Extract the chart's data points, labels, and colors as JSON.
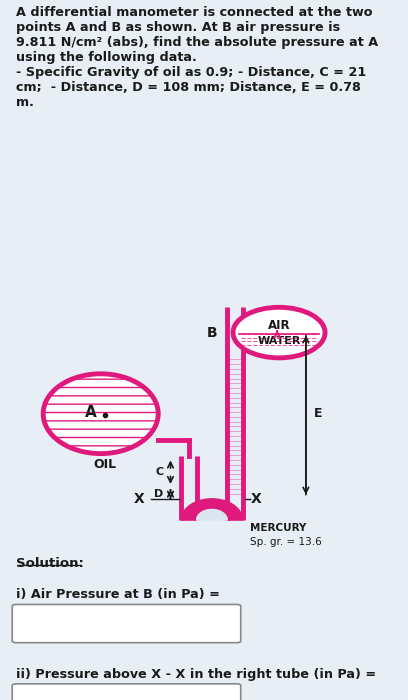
{
  "bg_color": "#e8eef5",
  "diagram_bg": "#dce6f0",
  "pink": "#e0197d",
  "title_text": "A differential manometer is connected at the two\npoints A and B as shown. At B air pressure is\n9.811 N/cm² (abs), find the absolute pressure at A\nusing the following data.\n- Specific Gravity of oil as 0.9; - Distance, C = 21\ncm;  - Distance, D = 108 mm; Distance, E = 0.78\nm.",
  "solution_text": "Solution:",
  "q1_text": "i) Air Pressure at B (in Pa) =",
  "q2_text": "ii) Pressure above X - X in the right tube (in Pa) =",
  "label_AIR": "AIR",
  "label_WATER": "WATER",
  "label_OIL": "OIL",
  "label_MERCURY": "MERCURY",
  "label_spgr": "Sp. gr. = 13.6",
  "label_A": "A",
  "label_B": "B",
  "label_C": "C",
  "label_D": "D",
  "label_E": "E",
  "label_X1": "X",
  "label_X2": "X"
}
